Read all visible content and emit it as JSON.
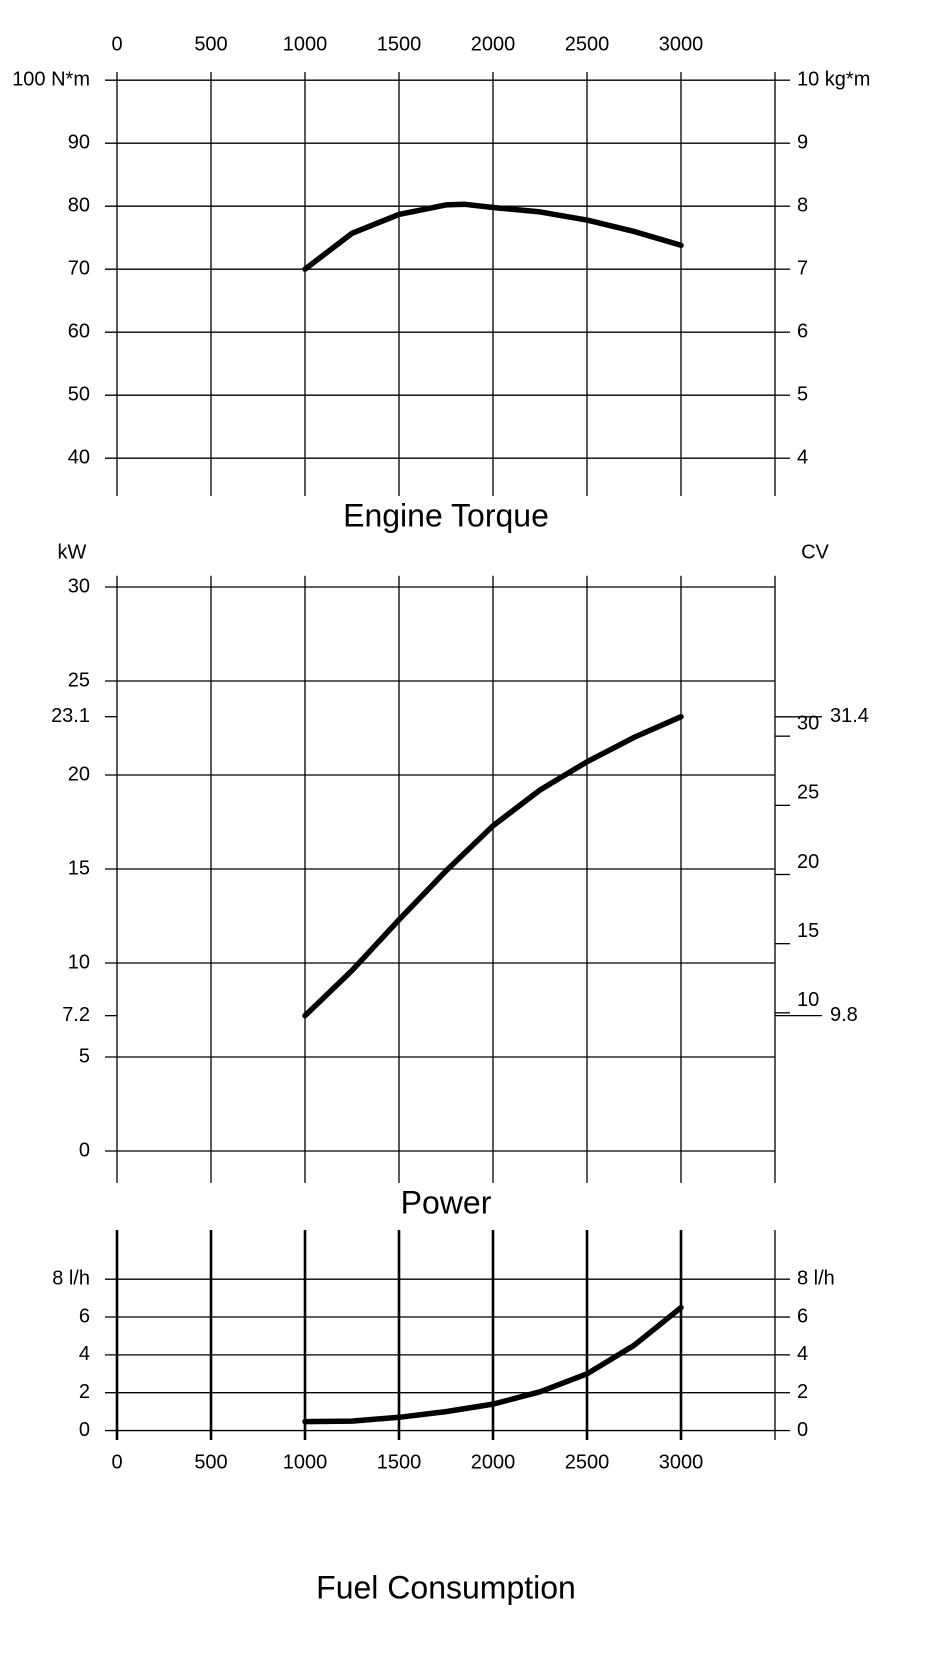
{
  "chart_data": [
    {
      "type": "line",
      "title": "Engine Torque",
      "color": "#000000",
      "x": [
        1000,
        1250,
        1500,
        1750,
        1850,
        2000,
        2250,
        2500,
        2750,
        3000
      ],
      "values": [
        70,
        75.7,
        78.7,
        80.2,
        80.3,
        79.8,
        79.1,
        77.8,
        76.0,
        73.8
      ],
      "xlim": [
        0,
        3500
      ],
      "xticks": [
        0,
        500,
        1000,
        1500,
        2000,
        2500,
        3000
      ],
      "xlabels": "top",
      "ylim": [
        34,
        101.3
      ],
      "yticks": [
        40,
        50,
        60,
        70,
        80,
        90,
        {
          "value": 100,
          "label": "100 N*m"
        }
      ],
      "y2lim": [
        3.4,
        10.13
      ],
      "y2ticks": [
        4,
        5,
        6,
        7,
        8,
        9,
        {
          "value": 10,
          "label": "10 kg*m"
        }
      ],
      "grid": true
    },
    {
      "type": "line",
      "title": "Power",
      "color": "#000000",
      "ylabel": "kW",
      "y2label": "CV",
      "x": [
        1000,
        1250,
        1500,
        1750,
        2000,
        2250,
        2500,
        2750,
        3000
      ],
      "values": [
        7.2,
        9.6,
        12.3,
        14.9,
        17.3,
        19.2,
        20.7,
        22.0,
        23.1
      ],
      "xlim": [
        0,
        3500
      ],
      "xticks": [
        0,
        500,
        1000,
        1500,
        2000,
        2500,
        3000
      ],
      "xlabels": "hidden",
      "ylim": [
        -1.7,
        30.6
      ],
      "yticks": [
        0,
        5,
        10,
        15,
        20,
        25,
        30
      ],
      "ymarks": [
        7.2,
        23.1
      ],
      "y2lim": [
        -2.3,
        41.6
      ],
      "y2ticks": [
        10,
        15,
        20,
        25,
        30
      ],
      "y2marks": [
        9.8,
        31.4
      ],
      "grid": true
    },
    {
      "type": "line",
      "title": "Fuel Consumption",
      "color": "#000000",
      "x": [
        1000,
        1250,
        1500,
        1750,
        2000,
        2250,
        2500,
        2750,
        3000
      ],
      "values": [
        0.47,
        0.5,
        0.7,
        1.0,
        1.4,
        2.05,
        3.0,
        4.5,
        6.5
      ],
      "xlim": [
        0,
        3500
      ],
      "xticks": [
        0,
        500,
        1000,
        1500,
        2000,
        2500,
        3000
      ],
      "xlabels": "bottom",
      "ylim": [
        -0.5,
        10.6
      ],
      "yticks": [
        0,
        2,
        4,
        6,
        {
          "value": 8,
          "label": "8 l/h"
        }
      ],
      "y2lim": [
        -0.5,
        10.6
      ],
      "y2ticks": [
        0,
        2,
        4,
        6,
        {
          "value": 8,
          "label": "8 l/h"
        }
      ],
      "grid": true
    }
  ]
}
